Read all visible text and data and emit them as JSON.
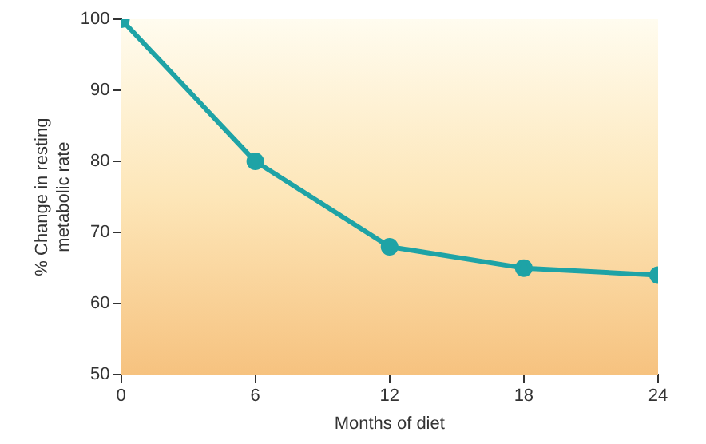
{
  "chart_data": {
    "type": "line",
    "xlabel": "Months of diet",
    "ylabel": "% Change in resting metabolic rate",
    "x": [
      0,
      6,
      12,
      18,
      24
    ],
    "series": [
      {
        "color": "#1ea3a6",
        "values": [
          100,
          80,
          68,
          65,
          64
        ]
      }
    ],
    "xlim": [
      0,
      24
    ],
    "xticks": [
      0,
      6,
      12,
      18,
      24
    ],
    "ylim": [
      50,
      100
    ],
    "yticks": [
      50,
      60,
      70,
      80,
      90,
      100
    ],
    "grid": false,
    "legend": false,
    "marker": "circle",
    "line_style": "solid"
  }
}
